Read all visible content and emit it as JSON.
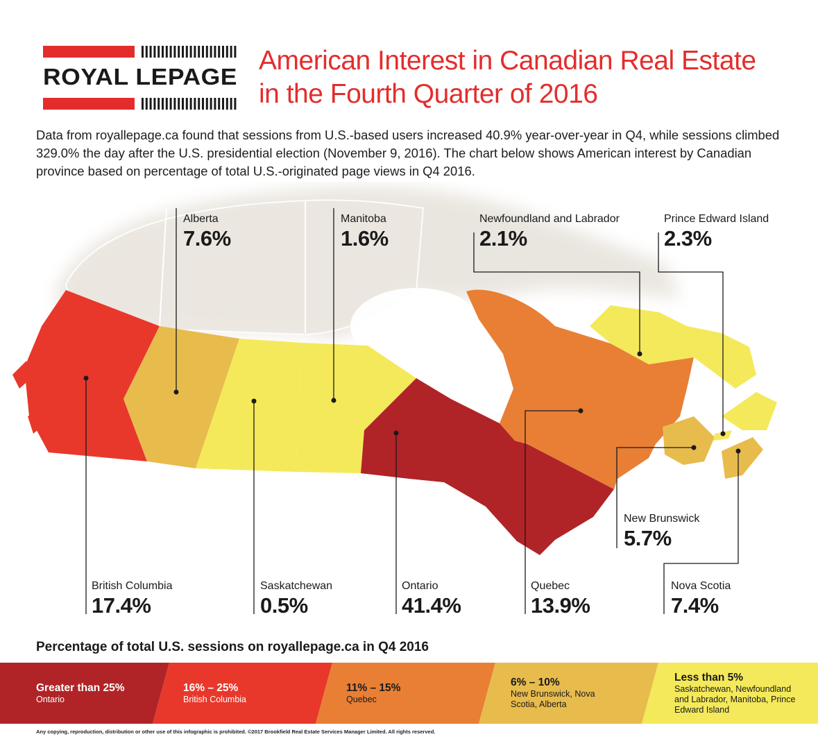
{
  "logo": {
    "brand": "ROYAL LEPAGE",
    "red": "#e32d2d",
    "dark": "#1a1a1a"
  },
  "title": {
    "line1": "American Interest in Canadian Real Estate",
    "line2": "in the Fourth Quarter of 2016",
    "color": "#e32d2d"
  },
  "intro": "Data from royallepage.ca found that sessions from U.S.-based users increased 40.9% year-over-year in Q4, while sessions climbed 329.0% the day after the U.S. presidential election (November 9, 2016). The chart below shows American interest by Canadian province based on percentage of total U.S.-originated page views in Q4 2016.",
  "provinces": [
    {
      "id": "alberta",
      "name": "Alberta",
      "pct": "7.6%",
      "fill": "#e8bb4d"
    },
    {
      "id": "manitoba",
      "name": "Manitoba",
      "pct": "1.6%",
      "fill": "#f4e95a"
    },
    {
      "id": "newfoundland",
      "name": "Newfoundland and Labrador",
      "pct": "2.1%",
      "fill": "#f4e95a"
    },
    {
      "id": "pei",
      "name": "Prince Edward Island",
      "pct": "2.3%",
      "fill": "#f4e95a"
    },
    {
      "id": "new-brunswick",
      "name": "New Brunswick",
      "pct": "5.7%",
      "fill": "#e8bb4d"
    },
    {
      "id": "british-columbia",
      "name": "British Columbia",
      "pct": "17.4%",
      "fill": "#e8382b"
    },
    {
      "id": "saskatchewan",
      "name": "Saskatchewan",
      "pct": "0.5%",
      "fill": "#f4e95a"
    },
    {
      "id": "ontario",
      "name": "Ontario",
      "pct": "41.4%",
      "fill": "#b02427"
    },
    {
      "id": "quebec",
      "name": "Quebec",
      "pct": "13.9%",
      "fill": "#e87f35"
    },
    {
      "id": "nova-scotia",
      "name": "Nova Scotia",
      "pct": "7.4%",
      "fill": "#e8bb4d"
    }
  ],
  "legend": {
    "title": "Percentage of total U.S. sessions on royallepage.ca in Q4 2016",
    "items": [
      {
        "range": "Greater than 25%",
        "provinces": "Ontario",
        "color": "#b02427",
        "text": "#ffffff"
      },
      {
        "range": "16% – 25%",
        "provinces": "British Columbia",
        "color": "#e8382b",
        "text": "#ffffff"
      },
      {
        "range": "11% – 15%",
        "provinces": "Quebec",
        "color": "#e87f35",
        "text": "#1a1a1a"
      },
      {
        "range": "6% – 10%",
        "provinces": "New Brunswick, Nova Scotia, Alberta",
        "color": "#e8bb4d",
        "text": "#1a1a1a"
      },
      {
        "range": "Less than 5%",
        "provinces": "Saskatchewan, Newfoundland and Labrador, Manitoba, Prince Edward Island",
        "color": "#f4e95a",
        "text": "#1a1a1a"
      }
    ]
  },
  "footer": "Any copying, reproduction, distribution or other use of this infographic is prohibited. ©2017 Brookfield Real Estate Services Manager Limited. All rights reserved."
}
